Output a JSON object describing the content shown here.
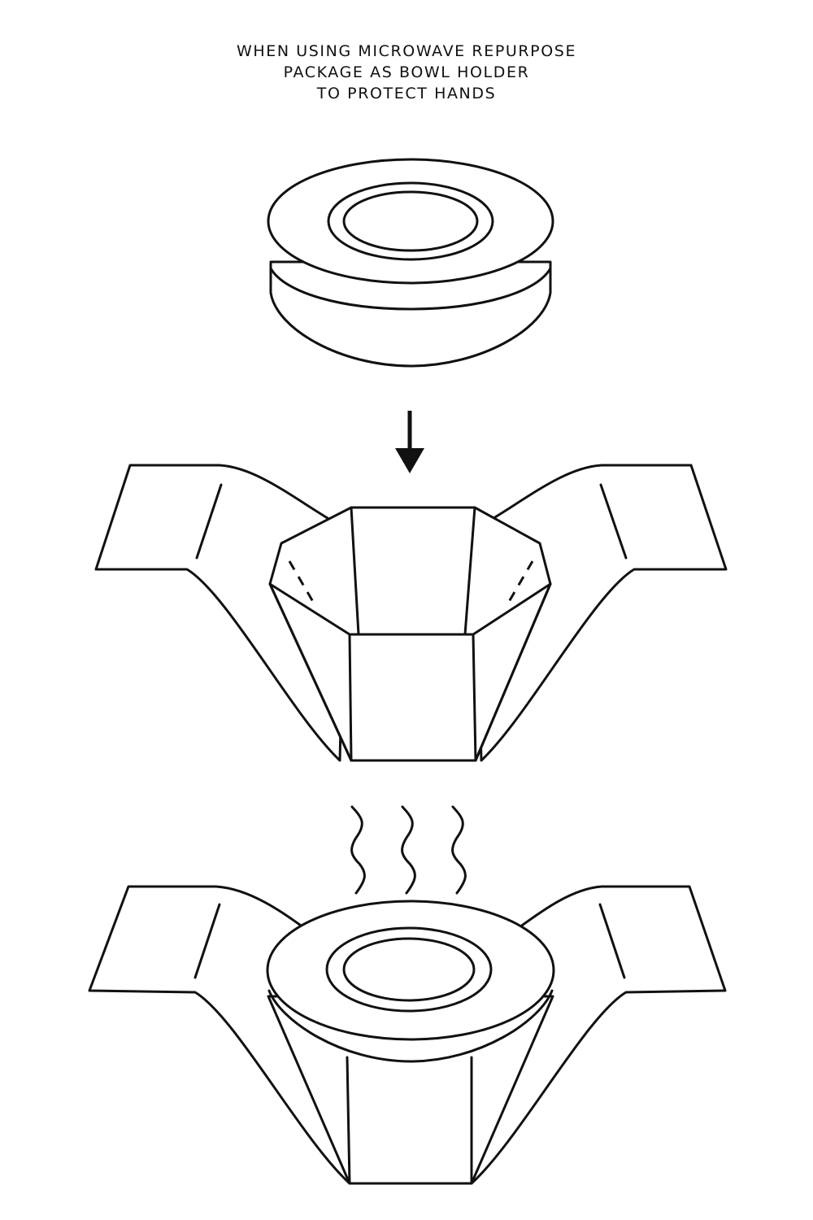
{
  "caption": {
    "line1": "WHEN USING MICROWAVE REPURPOSE",
    "line2": "PACKAGE AS BOWL HOLDER",
    "line3": "TO PROTECT HANDS"
  },
  "colors": {
    "line": "#111111",
    "background": "#ffffff"
  }
}
